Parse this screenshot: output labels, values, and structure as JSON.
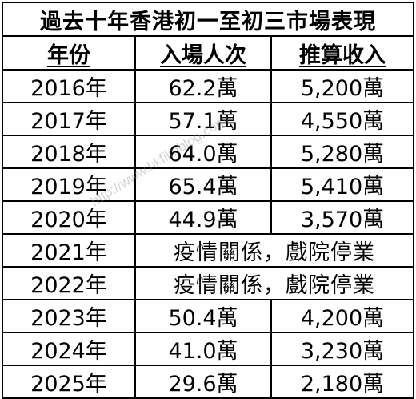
{
  "title": "過去十年香港初一至初三市場表現",
  "headers": {
    "year": "年份",
    "admissions": "入場人次",
    "revenue": "推算收入"
  },
  "rows": [
    {
      "year": "2016年",
      "admissions": "62.2萬",
      "revenue": "5,200萬"
    },
    {
      "year": "2017年",
      "admissions": "57.1萬",
      "revenue": "4,550萬"
    },
    {
      "year": "2018年",
      "admissions": "64.0萬",
      "revenue": "5,280萬"
    },
    {
      "year": "2019年",
      "admissions": "65.4萬",
      "revenue": "5,410萬"
    },
    {
      "year": "2020年",
      "admissions": "44.9萬",
      "revenue": "3,570萬"
    },
    {
      "year": "2021年",
      "note": "疫情關係，戲院停業"
    },
    {
      "year": "2022年",
      "note": "疫情關係，戲院停業"
    },
    {
      "year": "2023年",
      "admissions": "50.4萬",
      "revenue": "4,200萬"
    },
    {
      "year": "2024年",
      "admissions": "41.0萬",
      "revenue": "3,230萬"
    },
    {
      "year": "2025年",
      "admissions": "29.6萬",
      "revenue": "2,180萬"
    }
  ],
  "watermark": "http://www.hkfilmblog.com/"
}
